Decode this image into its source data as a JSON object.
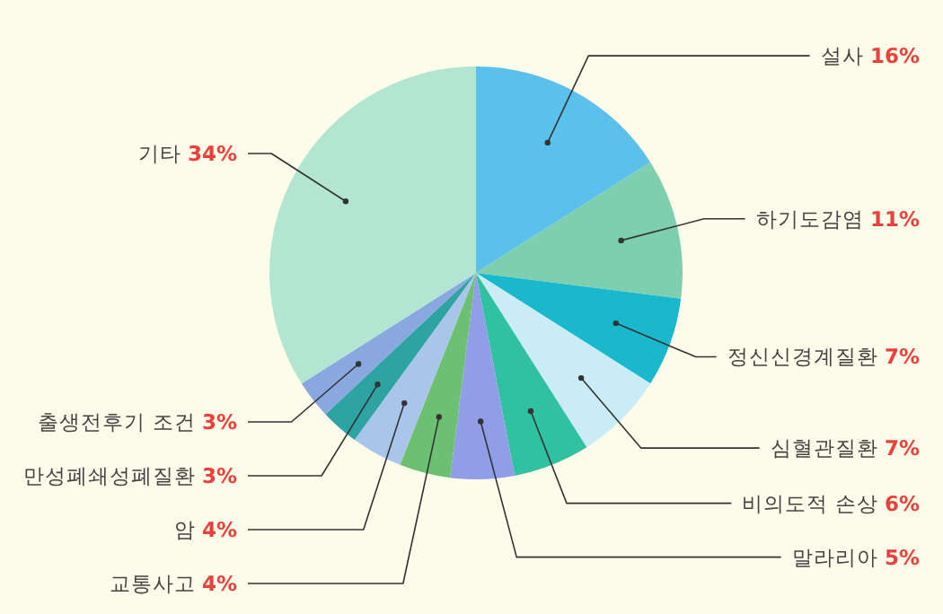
{
  "chart_data": {
    "type": "pie",
    "legend": false,
    "categories": [
      "설사",
      "하기도감염",
      "정신신경계질환",
      "심혈관질환",
      "비의도적 손상",
      "말라리아",
      "교통사고",
      "암",
      "만성폐쇄성폐질환",
      "출생전후기 조건",
      "기타"
    ],
    "values": [
      16,
      11,
      7,
      7,
      6,
      5,
      4,
      4,
      3,
      3,
      34
    ],
    "value_labels": [
      "16%",
      "11%",
      "7%",
      "7%",
      "6%",
      "5%",
      "4%",
      "4%",
      "3%",
      "3%",
      "34%"
    ],
    "colors": [
      "#5bc0eb",
      "#7ecfb0",
      "#1ab8cc",
      "#c9ecf7",
      "#2fc1a0",
      "#8f9ee6",
      "#6dbf72",
      "#a9c6ea",
      "#2ea3a3",
      "#8aa8e0",
      "#b3e6d2"
    ]
  }
}
